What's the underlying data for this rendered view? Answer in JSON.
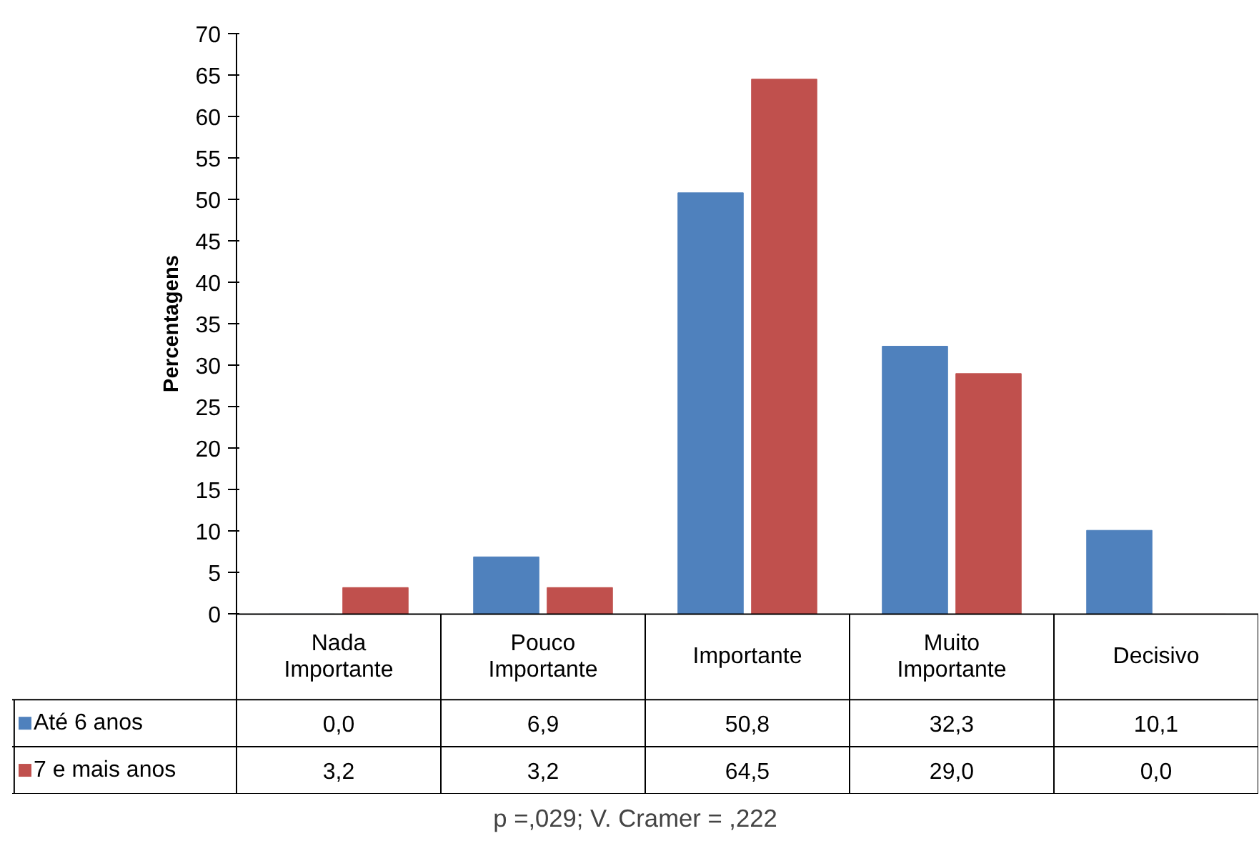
{
  "chart_data": {
    "type": "bar",
    "ylabel": "Percentagens",
    "categories": [
      "Nada Importante",
      "Pouco Importante",
      "Importante",
      "Muito Importante",
      "Decisivo"
    ],
    "series": [
      {
        "name": "Até 6 anos",
        "color": "#4f81bd",
        "values": [
          0.0,
          6.9,
          50.8,
          32.3,
          10.1
        ],
        "value_labels": [
          "0,0",
          "6,9",
          "50,8",
          "32,3",
          "10,1"
        ]
      },
      {
        "name": "7 e mais anos",
        "color": "#c0504d",
        "values": [
          3.2,
          3.2,
          64.5,
          29.0,
          0.0
        ],
        "value_labels": [
          "3,2",
          "3,2",
          "64,5",
          "29,0",
          "0,0"
        ]
      }
    ],
    "ylim": [
      0,
      70
    ],
    "yticks": [
      0,
      5,
      10,
      15,
      20,
      25,
      30,
      35,
      40,
      45,
      50,
      55,
      60,
      65,
      70
    ],
    "grid": false,
    "legend": "bottom",
    "annotations": [
      "p =,029; V. Cramer = ,222"
    ]
  }
}
